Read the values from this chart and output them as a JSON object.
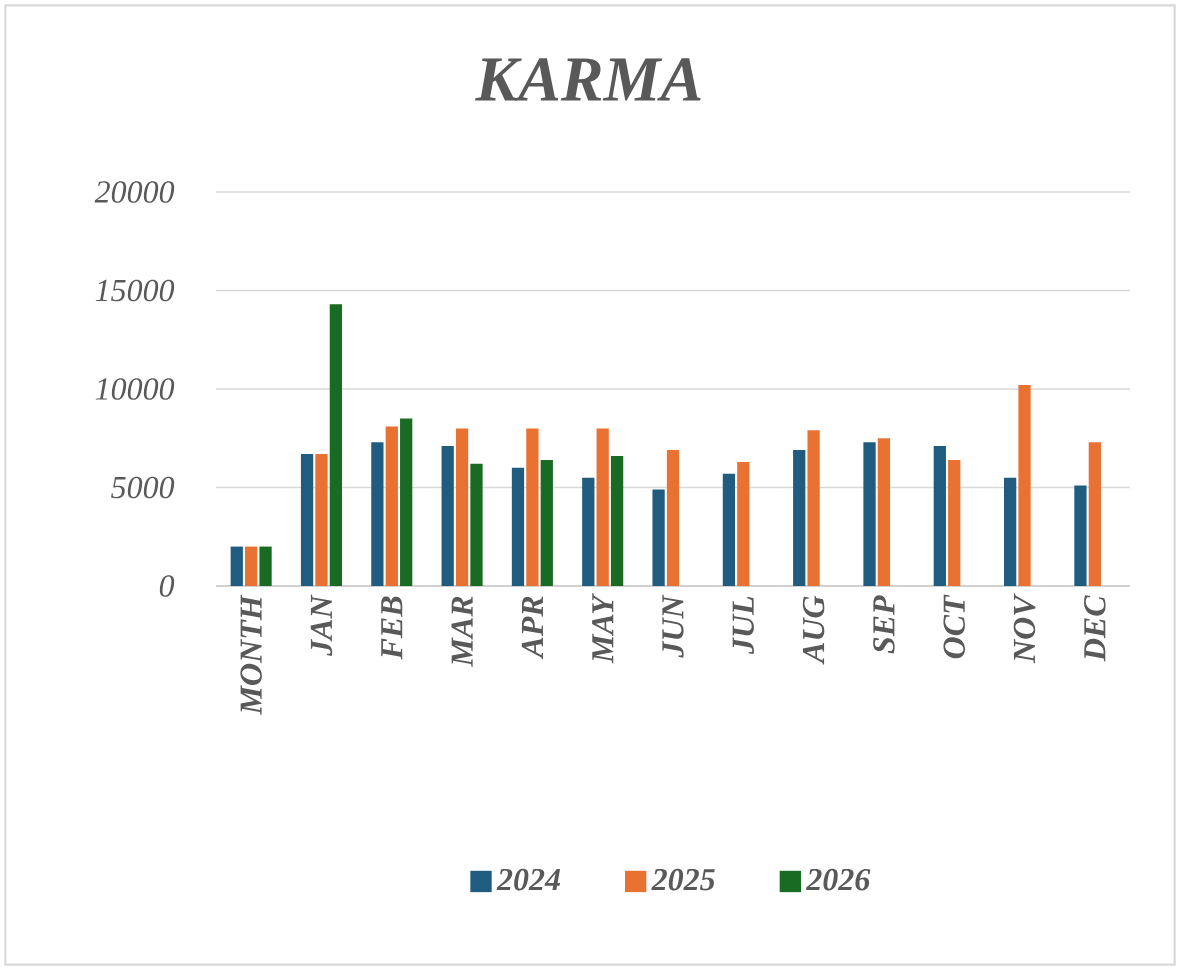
{
  "chart_data": {
    "type": "bar",
    "title": "KARMA",
    "categories": [
      "MONTH",
      "JAN",
      "FEB",
      "MAR",
      "APR",
      "MAY",
      "JUN",
      "JUL",
      "AUG",
      "SEP",
      "OCT",
      "NOV",
      "DEC"
    ],
    "series": [
      {
        "name": "2024",
        "color": "#1f5c7f",
        "values": [
          2000,
          6700,
          7300,
          7100,
          6000,
          5500,
          4900,
          5700,
          6900,
          7300,
          7100,
          5500,
          5100
        ]
      },
      {
        "name": "2025",
        "color": "#e97132",
        "values": [
          2000,
          6700,
          8100,
          8000,
          8000,
          8000,
          6900,
          6300,
          7900,
          7500,
          6400,
          10200,
          7300
        ]
      },
      {
        "name": "2026",
        "color": "#196b24",
        "values": [
          2000,
          14300,
          8500,
          6200,
          6400,
          6600,
          null,
          null,
          null,
          null,
          null,
          null,
          null
        ]
      }
    ],
    "ylim": [
      0,
      20000
    ],
    "yticks": [
      0,
      5000,
      10000,
      15000,
      20000
    ],
    "grid": "y",
    "legend": "bottom"
  }
}
